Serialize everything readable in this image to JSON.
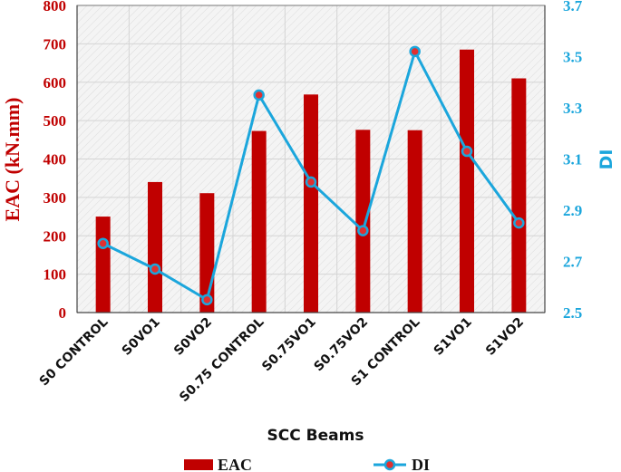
{
  "chart_data": {
    "type": "bar",
    "categories": [
      "S0 CONTROL",
      "S0VO1",
      "S0VO2",
      "S0.75 CONTROL",
      "S0.75VO1",
      "S0.75VO2",
      "S1 CONTROL",
      "S1VO1",
      "S1VO2"
    ],
    "series": [
      {
        "name": "EAC",
        "type": "bar",
        "axis": "left",
        "color": "#c00000",
        "values": [
          250,
          340,
          311,
          473,
          568,
          476,
          475,
          685,
          610
        ]
      },
      {
        "name": "DI",
        "type": "line",
        "axis": "right",
        "color": "#1ba6dc",
        "marker_fill": "#e03030",
        "values": [
          2.77,
          2.67,
          2.55,
          3.35,
          3.01,
          2.82,
          3.52,
          3.13,
          2.85
        ]
      }
    ],
    "xlabel": "SCC Beams",
    "ylabel": "EAC  (kN.mm)",
    "y2label": "DI",
    "ylim": [
      0,
      800
    ],
    "y2lim": [
      2.5,
      3.7
    ],
    "yticks": [
      "0",
      "100",
      "200",
      "300",
      "400",
      "500",
      "600",
      "700",
      "800"
    ],
    "y2ticks": [
      "2.5",
      "2.7",
      "2.9",
      "3.1",
      "3.3",
      "3.5",
      "3.7"
    ],
    "grid": true,
    "legend_position": "bottom"
  }
}
